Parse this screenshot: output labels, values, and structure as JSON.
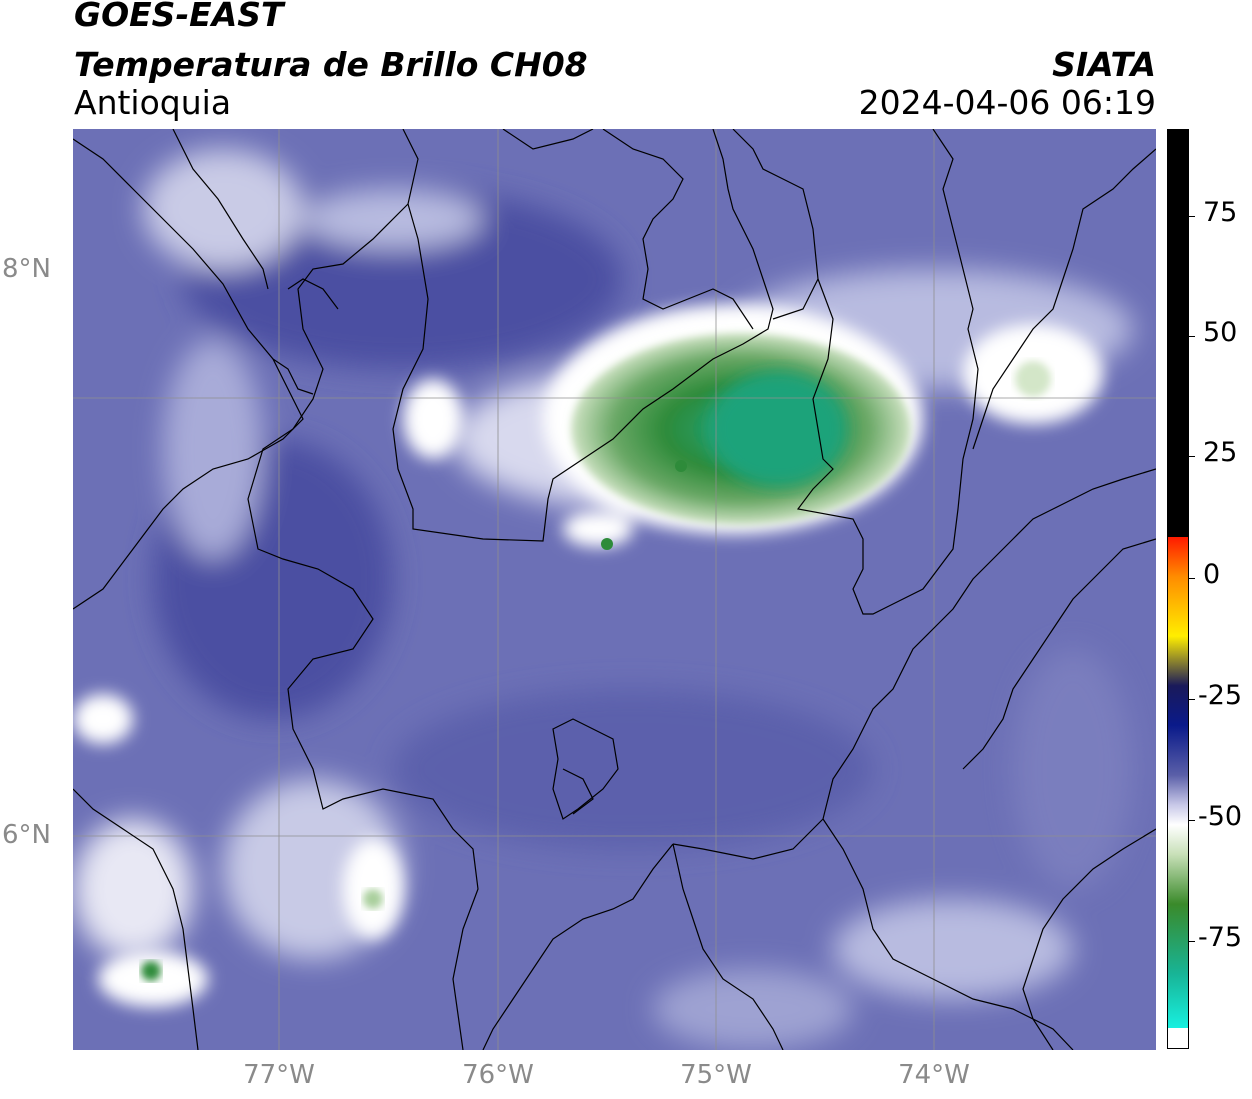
{
  "header": {
    "satellite": "GOES-EAST",
    "product": "Temperatura de Brillo CH08",
    "region": "Antioquia",
    "brand": "SIATA",
    "timestamp": "2024-04-06 06:19"
  },
  "axes": {
    "lat_labels": [
      {
        "text": "8°N",
        "lat": 8
      },
      {
        "text": "6°N",
        "lat": 6
      }
    ],
    "lon_labels": [
      {
        "text": "77°W",
        "lon": -77
      },
      {
        "text": "76°W",
        "lon": -76
      },
      {
        "text": "75°W",
        "lon": -75
      },
      {
        "text": "74°W",
        "lon": -74
      }
    ]
  },
  "colorbar": {
    "ticks": [
      "75",
      "50",
      "25",
      "0",
      "-25",
      "-50",
      "-75"
    ],
    "tick_values": [
      75,
      50,
      25,
      0,
      -25,
      -50,
      -75
    ],
    "vmin": -95,
    "vmax": 90,
    "colors": {
      "warm_black": "#000000",
      "red": "#ff1a00",
      "orange": "#ff8c00",
      "yellow": "#ffee00",
      "dark_navy": "#1a1a5a",
      "navy": "#0a1a8a",
      "purple_blue": "#5a5fa8",
      "light_lavender": "#c8c8e8",
      "white": "#ffffff",
      "light_green": "#c8e0b8",
      "green": "#3a8a2a",
      "teal": "#18b496",
      "cyan": "#18f0e0"
    }
  },
  "map": {
    "background_color": "#6a6eb4",
    "cloud_core_color": "#2f8f3a",
    "cold_cloud_color": "#ffffff"
  }
}
